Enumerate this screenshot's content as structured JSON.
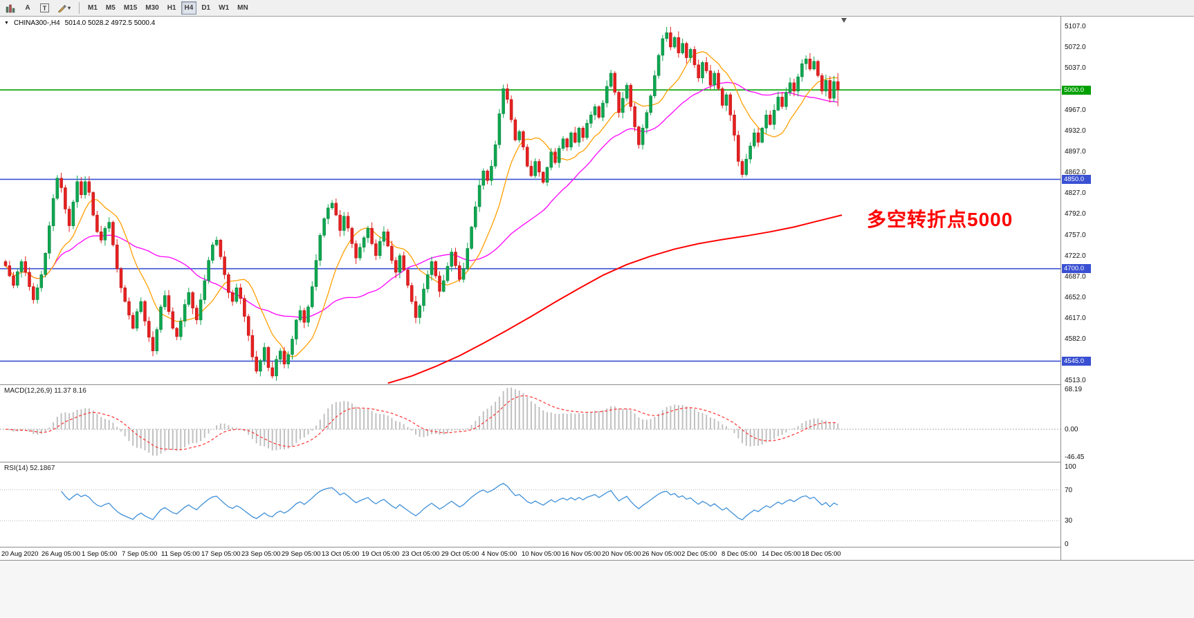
{
  "toolbar": {
    "tools": [
      {
        "id": "chart-bars",
        "label": ""
      },
      {
        "id": "text-a",
        "label": "A"
      },
      {
        "id": "text-t",
        "label": "T"
      },
      {
        "id": "draw",
        "label": ""
      }
    ],
    "timeframes": [
      {
        "label": "M1",
        "active": false
      },
      {
        "label": "M5",
        "active": false
      },
      {
        "label": "M15",
        "active": false
      },
      {
        "label": "M30",
        "active": false
      },
      {
        "label": "H1",
        "active": false
      },
      {
        "label": "H4",
        "active": true
      },
      {
        "label": "D1",
        "active": false
      },
      {
        "label": "W1",
        "active": false
      },
      {
        "label": "MN",
        "active": false
      }
    ]
  },
  "header": {
    "dropdown_marker": "▼",
    "symbol_text": "CHINA300-,H4",
    "ohlc_text": "5014.0 5028.2 4972.5 5000.4"
  },
  "annotation": {
    "text": "多空转折点5000",
    "color": "#ff0000"
  },
  "chart_data": {
    "type": "candlestick",
    "symbol": "CHINA300-,H4",
    "timeframe": "H4",
    "ohlc_current": [
      5014.0,
      5028.2,
      4972.5,
      5000.4
    ],
    "price_axis_ticks": [
      5107.0,
      5072.0,
      5037.0,
      4967.0,
      4932.0,
      4897.0,
      4862.0,
      4827.0,
      4792.0,
      4757.0,
      4722.0,
      4687.0,
      4652.0,
      4617.0,
      4582.0,
      4513.0
    ],
    "hlines": [
      {
        "price": 5000.0,
        "label": "5000.0",
        "color": "#00a000"
      },
      {
        "price": 4850.0,
        "label": "4850.0",
        "color": "#3950d2"
      },
      {
        "price": 4700.0,
        "label": "4700.0",
        "color": "#3950d2"
      },
      {
        "price": 4545.0,
        "label": "4545.0",
        "color": "#3950d2"
      }
    ],
    "first_open": 4712,
    "closes": [
      4705,
      4688,
      4672,
      4695,
      4712,
      4694,
      4670,
      4648,
      4668,
      4690,
      4726,
      4772,
      4818,
      4852,
      4836,
      4800,
      4772,
      4812,
      4846,
      4824,
      4846,
      4828,
      4790,
      4762,
      4748,
      4768,
      4778,
      4740,
      4700,
      4668,
      4645,
      4622,
      4600,
      4628,
      4645,
      4612,
      4585,
      4562,
      4598,
      4636,
      4655,
      4628,
      4600,
      4586,
      4612,
      4640,
      4660,
      4634,
      4614,
      4648,
      4680,
      4714,
      4740,
      4748,
      4720,
      4690,
      4660,
      4645,
      4668,
      4650,
      4620,
      4588,
      4552,
      4528,
      4546,
      4568,
      4534,
      4520,
      4548,
      4562,
      4540,
      4556,
      4582,
      4614,
      4630,
      4610,
      4636,
      4670,
      4714,
      4756,
      4784,
      4802,
      4810,
      4790,
      4764,
      4788,
      4768,
      4742,
      4718,
      4736,
      4752,
      4768,
      4742,
      4722,
      4746,
      4762,
      4738,
      4714,
      4694,
      4722,
      4698,
      4672,
      4645,
      4618,
      4638,
      4666,
      4690,
      4712,
      4688,
      4662,
      4680,
      4704,
      4728,
      4705,
      4682,
      4700,
      4734,
      4770,
      4804,
      4840,
      4864,
      4848,
      4872,
      4908,
      4960,
      5002,
      4984,
      4950,
      4916,
      4930,
      4904,
      4872,
      4856,
      4880,
      4862,
      4845,
      4870,
      4896,
      4878,
      4902,
      4918,
      4904,
      4928,
      4912,
      4936,
      4920,
      4944,
      4958,
      4972,
      4954,
      4978,
      5006,
      5028,
      4996,
      4962,
      4986,
      5008,
      4972,
      4938,
      4908,
      4936,
      4962,
      4990,
      5024,
      5058,
      5086,
      5096,
      5072,
      5088,
      5062,
      5078,
      5054,
      5068,
      5042,
      5020,
      5046,
      5032,
      5008,
      5028,
      5002,
      4974,
      4992,
      4958,
      4924,
      4880,
      4858,
      4884,
      4906,
      4928,
      4912,
      4936,
      4958,
      4942,
      4966,
      4988,
      4972,
      4996,
      5012,
      4998,
      5022,
      5044,
      5052,
      5035,
      5048,
      5024,
      4998,
      5016,
      4986,
      5014,
      5000.4
    ],
    "slow_ma_points": [
      [
        96,
        4508
      ],
      [
        102,
        4520
      ],
      [
        108,
        4536
      ],
      [
        114,
        4554
      ],
      [
        120,
        4575
      ],
      [
        126,
        4597
      ],
      [
        132,
        4620
      ],
      [
        138,
        4644
      ],
      [
        144,
        4667
      ],
      [
        150,
        4689
      ],
      [
        156,
        4707
      ],
      [
        162,
        4721
      ],
      [
        168,
        4733
      ],
      [
        174,
        4742
      ],
      [
        180,
        4749
      ],
      [
        186,
        4755
      ],
      [
        192,
        4762
      ],
      [
        198,
        4770
      ],
      [
        204,
        4780
      ],
      [
        210,
        4790
      ]
    ],
    "time_labels": [
      "20 Aug 2020",
      "26 Aug 05:00",
      "1 Sep 05:00",
      "7 Sep 05:00",
      "11 Sep 05:00",
      "17 Sep 05:00",
      "23 Sep 05:00",
      "29 Sep 05:00",
      "13 Oct 05:00",
      "19 Oct 05:00",
      "23 Oct 05:00",
      "29 Oct 05:00",
      "4 Nov 05:00",
      "10 Nov 05:00",
      "16 Nov 05:00",
      "20 Nov 05:00",
      "26 Nov 05:00",
      "2 Dec 05:00",
      "8 Dec 05:00",
      "14 Dec 05:00",
      "18 Dec 05:00"
    ],
    "macd": {
      "label": "MACD(12,26,9) 11.37 8.16",
      "current": [
        11.37,
        8.16
      ],
      "axis_ticks": [
        {
          "v": 68.19,
          "label": "68.19"
        },
        {
          "v": 0,
          "label": "0.00"
        },
        {
          "v": -46.45,
          "label": "-46.45"
        }
      ]
    },
    "rsi": {
      "label": "RSI(14) 52.1867",
      "current": 52.1867,
      "levels": [
        70,
        30
      ],
      "axis_ticks": [
        {
          "v": 100,
          "label": "100"
        },
        {
          "v": 70,
          "label": "70"
        },
        {
          "v": 30,
          "label": "30"
        },
        {
          "v": 0,
          "label": "0"
        }
      ]
    }
  },
  "colors": {
    "candle_up": "#0da750",
    "candle_up_dark": "#087a38",
    "candle_down": "#e62020",
    "candle_down_dark": "#b21010",
    "ma_fast": "#ff9f00",
    "ma_mid": "#ff00ff",
    "ma_slow": "#ff0000",
    "macd_hist": "#c0c0c0",
    "macd_signal": "#ff3030",
    "rsi_line": "#3e8fd8",
    "hline_green": "#00a000",
    "hline_blue": "#3950d2"
  }
}
